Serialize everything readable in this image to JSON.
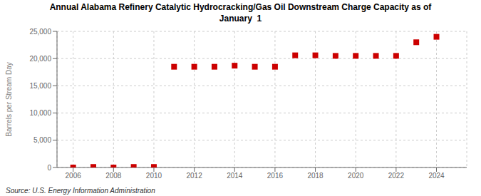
{
  "chart_data": {
    "type": "scatter",
    "title": "Annual Alabama Refinery Catalytic Hydrocracking/Gas Oil Downstream Charge Capacity as of\nJanuary  1",
    "y_label": "Barrels per Stream Day",
    "source": "Source: U.S. Energy Information Administration",
    "x": [
      2006,
      2007,
      2008,
      2009,
      2010,
      2011,
      2012,
      2013,
      2014,
      2015,
      2016,
      2017,
      2018,
      2019,
      2020,
      2021,
      2022,
      2023,
      2024
    ],
    "values": [
      0,
      100,
      0,
      100,
      100,
      18500,
      18500,
      18500,
      18700,
      18500,
      18500,
      20600,
      20600,
      20500,
      20500,
      20500,
      20500,
      23000,
      24000
    ],
    "color": "#cc0000",
    "marker": "square",
    "xlim": [
      2005.2,
      2025.5
    ],
    "xticks": [
      2006,
      2008,
      2010,
      2012,
      2014,
      2016,
      2018,
      2020,
      2022,
      2024
    ],
    "ylim": [
      0,
      25000
    ],
    "yticks": [
      0,
      {
        "value": 5000,
        "label": "5,000"
      },
      {
        "value": 10000,
        "label": "10,000"
      },
      {
        "value": 15000,
        "label": "15,000"
      },
      {
        "value": 20000,
        "label": "20,000"
      },
      {
        "value": 25000,
        "label": "25,000"
      }
    ],
    "grid": true
  }
}
